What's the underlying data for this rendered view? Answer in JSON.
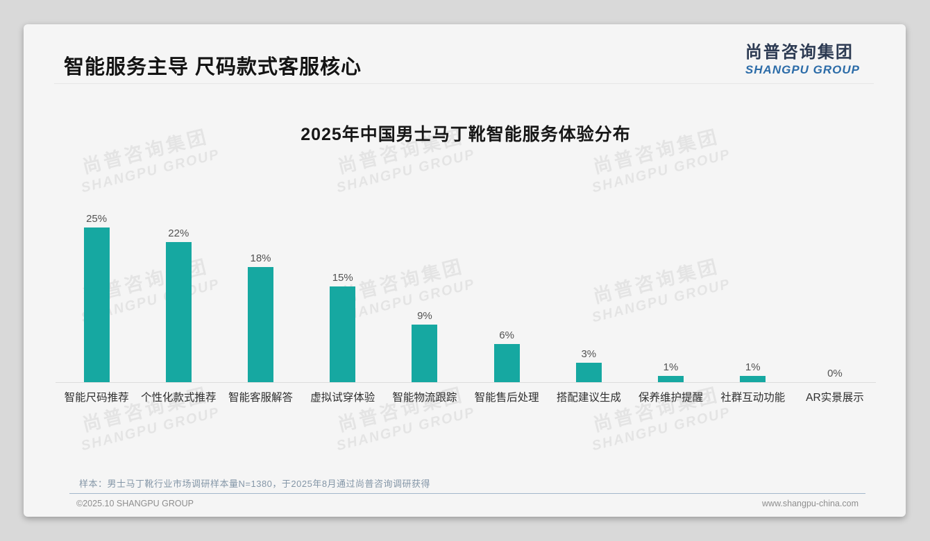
{
  "header": {
    "title": "智能服务主导 尺码款式客服核心"
  },
  "logo": {
    "cn": "尚普咨询集团",
    "en": "SHANGPU GROUP"
  },
  "watermark": {
    "cn": "尚普咨询集团",
    "en": "SHANGPU GROUP"
  },
  "footer": {
    "note": "样本：男士马丁靴行业市场调研样本量N=1380，于2025年8月通过尚普咨询调研获得",
    "copyright": "©2025.10 SHANGPU GROUP",
    "website": "www.shangpu-china.com"
  },
  "chart_data": {
    "type": "bar",
    "title": "2025年中国男士马丁靴智能服务体验分布",
    "categories": [
      "智能尺码推荐",
      "个性化款式推荐",
      "智能客服解答",
      "虚拟试穿体验",
      "智能物流跟踪",
      "智能售后处理",
      "搭配建议生成",
      "保养维护提醒",
      "社群互动功能",
      "AR实景展示"
    ],
    "values": [
      25,
      22,
      18,
      15,
      9,
      6,
      3,
      1,
      1,
      0
    ],
    "value_labels": [
      "25%",
      "22%",
      "18%",
      "15%",
      "9%",
      "6%",
      "3%",
      "1%",
      "1%",
      "0%"
    ],
    "unit": "%",
    "bar_color": "#16a8a1",
    "xlabel": "",
    "ylabel": "",
    "ylim": [
      0,
      27
    ],
    "grid": false,
    "legend": "none",
    "value_label_position": "above-bar"
  }
}
